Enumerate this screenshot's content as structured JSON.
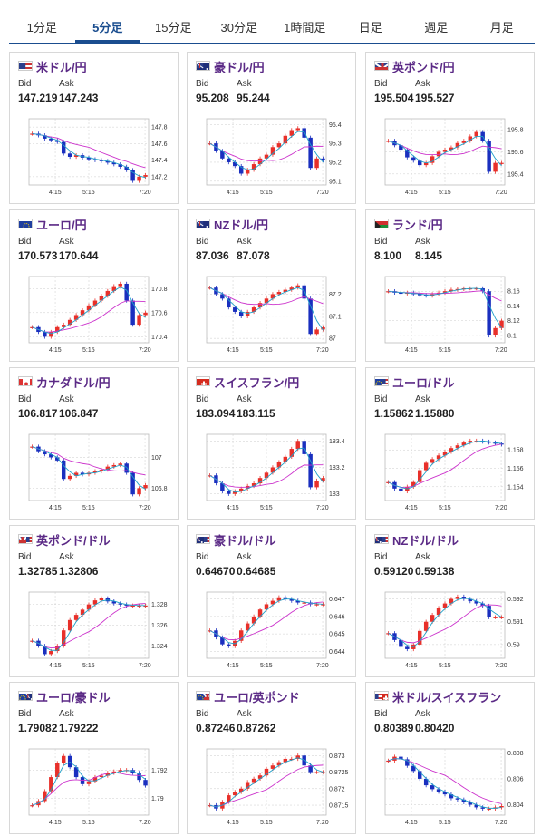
{
  "tabs": [
    {
      "label": "1分足",
      "active": false
    },
    {
      "label": "5分足",
      "active": true
    },
    {
      "label": "15分足",
      "active": false
    },
    {
      "label": "30分足",
      "active": false
    },
    {
      "label": "1時間足",
      "active": false
    },
    {
      "label": "日足",
      "active": false
    },
    {
      "label": "週足",
      "active": false
    },
    {
      "label": "月足",
      "active": false
    }
  ],
  "labels": {
    "bid": "Bid",
    "ask": "Ask"
  },
  "colors": {
    "up": "#e8302a",
    "down": "#1a2fbf",
    "ma_long": "#cc33cc",
    "ma_short": "#1ea0c8",
    "pair_name": "#5b2a86",
    "tab_active": "#1a4d8f"
  },
  "cards": [
    {
      "pair": "米ドル/円",
      "flag": "us",
      "bid": "147.219",
      "ask": "147.243"
    },
    {
      "pair": "豪ドル/円",
      "flag": "au",
      "bid": "95.208",
      "ask": "95.244"
    },
    {
      "pair": "英ポンド/円",
      "flag": "uk",
      "bid": "195.504",
      "ask": "195.527"
    },
    {
      "pair": "ユーロ/円",
      "flag": "eu",
      "bid": "170.573",
      "ask": "170.644"
    },
    {
      "pair": "NZドル/円",
      "flag": "nz",
      "bid": "87.036",
      "ask": "87.078"
    },
    {
      "pair": "ランド/円",
      "flag": "za",
      "bid": "8.100",
      "ask": "8.145"
    },
    {
      "pair": "カナダドル/円",
      "flag": "ca",
      "bid": "106.817",
      "ask": "106.847"
    },
    {
      "pair": "スイスフラン/円",
      "flag": "ch",
      "bid": "183.094",
      "ask": "183.115"
    },
    {
      "pair": "ユーロ/ドル",
      "flag": "eu-us",
      "bid": "1.15862",
      "ask": "1.15880"
    },
    {
      "pair": "英ポンド/ドル",
      "flag": "uk-us",
      "bid": "1.32785",
      "ask": "1.32806"
    },
    {
      "pair": "豪ドル/ドル",
      "flag": "au-us",
      "bid": "0.64670",
      "ask": "0.64685"
    },
    {
      "pair": "NZドル/ドル",
      "flag": "nz-us",
      "bid": "0.59120",
      "ask": "0.59138"
    },
    {
      "pair": "ユーロ/豪ドル",
      "flag": "eu-au",
      "bid": "1.79082",
      "ask": "1.79222"
    },
    {
      "pair": "ユーロ/英ポンド",
      "flag": "eu-uk",
      "bid": "0.87246",
      "ask": "0.87262"
    },
    {
      "pair": "米ドル/スイスフラン",
      "flag": "us-ch",
      "bid": "0.80389",
      "ask": "0.80420"
    }
  ],
  "chart_data": [
    {
      "type": "candlestick",
      "pair": "米ドル/円",
      "x_ticks": [
        "4:15",
        "5:15",
        "7:20"
      ],
      "y_ticks": [
        147.8,
        147.6,
        147.4,
        147.2
      ],
      "ylim": [
        147.1,
        147.9
      ],
      "path": [
        147.72,
        147.7,
        147.66,
        147.64,
        147.62,
        147.48,
        147.44,
        147.46,
        147.43,
        147.41,
        147.4,
        147.39,
        147.37,
        147.35,
        147.32,
        147.28,
        147.15,
        147.2,
        147.22
      ]
    },
    {
      "type": "candlestick",
      "pair": "豪ドル/円",
      "x_ticks": [
        "4:15",
        "5:15",
        "7:20"
      ],
      "y_ticks": [
        95.4,
        95.3,
        95.2,
        95.1
      ],
      "ylim": [
        95.08,
        95.43
      ],
      "path": [
        95.3,
        95.26,
        95.22,
        95.2,
        95.18,
        95.14,
        95.16,
        95.19,
        95.22,
        95.24,
        95.28,
        95.3,
        95.34,
        95.37,
        95.38,
        95.33,
        95.17,
        95.22,
        95.21
      ]
    },
    {
      "type": "candlestick",
      "pair": "英ポンド/円",
      "x_ticks": [
        "4:15",
        "5:15",
        "7:20"
      ],
      "y_ticks": [
        195.8,
        195.6,
        195.4
      ],
      "ylim": [
        195.3,
        195.9
      ],
      "path": [
        195.7,
        195.66,
        195.62,
        195.55,
        195.52,
        195.48,
        195.5,
        195.56,
        195.6,
        195.62,
        195.64,
        195.68,
        195.7,
        195.74,
        195.78,
        195.7,
        195.42,
        195.5,
        195.5
      ]
    },
    {
      "type": "candlestick",
      "pair": "ユーロ/円",
      "x_ticks": [
        "4:15",
        "5:15",
        "7:20"
      ],
      "y_ticks": [
        170.8,
        170.6,
        170.4
      ],
      "ylim": [
        170.35,
        170.9
      ],
      "path": [
        170.48,
        170.44,
        170.4,
        170.44,
        170.48,
        170.5,
        170.54,
        170.58,
        170.62,
        170.66,
        170.7,
        170.74,
        170.78,
        170.82,
        170.84,
        170.7,
        170.5,
        170.58,
        170.6
      ]
    },
    {
      "type": "candlestick",
      "pair": "NZドル/円",
      "x_ticks": [
        "4:15",
        "5:15",
        "7:20"
      ],
      "y_ticks": [
        87.2,
        87.1,
        87.0
      ],
      "ylim": [
        86.98,
        87.28
      ],
      "path": [
        87.23,
        87.2,
        87.18,
        87.14,
        87.12,
        87.1,
        87.12,
        87.14,
        87.16,
        87.18,
        87.2,
        87.21,
        87.22,
        87.23,
        87.24,
        87.18,
        87.02,
        87.04,
        87.05
      ]
    },
    {
      "type": "candlestick",
      "pair": "ランド/円",
      "x_ticks": [
        "4:15",
        "5:15",
        "7:20"
      ],
      "y_ticks": [
        8.16,
        8.14,
        8.12,
        8.1
      ],
      "ylim": [
        8.09,
        8.18
      ],
      "path": [
        8.16,
        8.158,
        8.157,
        8.158,
        8.156,
        8.155,
        8.154,
        8.156,
        8.158,
        8.16,
        8.162,
        8.163,
        8.164,
        8.164,
        8.164,
        8.16,
        8.1,
        8.11,
        8.12
      ]
    },
    {
      "type": "candlestick",
      "pair": "カナダドル/円",
      "x_ticks": [
        "4:15",
        "5:15",
        "7:20"
      ],
      "y_ticks": [
        107.0,
        106.8
      ],
      "ylim": [
        106.72,
        107.15
      ],
      "path": [
        107.07,
        107.04,
        107.02,
        107.0,
        106.98,
        106.86,
        106.88,
        106.9,
        106.89,
        106.9,
        106.91,
        106.92,
        106.94,
        106.95,
        106.96,
        106.9,
        106.76,
        106.8,
        106.82
      ]
    },
    {
      "type": "candlestick",
      "pair": "スイスフラン/円",
      "x_ticks": [
        "4:15",
        "5:15",
        "7:20"
      ],
      "y_ticks": [
        183.4,
        183.2,
        183.0
      ],
      "ylim": [
        182.95,
        183.45
      ],
      "path": [
        183.14,
        183.08,
        183.02,
        183.0,
        183.02,
        183.04,
        183.06,
        183.08,
        183.12,
        183.16,
        183.2,
        183.24,
        183.28,
        183.34,
        183.4,
        183.3,
        183.05,
        183.1,
        183.12
      ]
    },
    {
      "type": "candlestick",
      "pair": "ユーロ/ドル",
      "x_ticks": [
        "4:15",
        "5:15",
        "7:20"
      ],
      "y_ticks": [
        1.158,
        1.156,
        1.154
      ],
      "ylim": [
        1.1525,
        1.1597
      ],
      "path": [
        1.1545,
        1.1538,
        1.1535,
        1.154,
        1.1545,
        1.1558,
        1.1566,
        1.157,
        1.1574,
        1.1578,
        1.1582,
        1.1585,
        1.1588,
        1.159,
        1.159,
        1.1589,
        1.1588,
        1.1587,
        1.1586
      ]
    },
    {
      "type": "candlestick",
      "pair": "英ポンド/ドル",
      "x_ticks": [
        "4:15",
        "5:15",
        "7:20"
      ],
      "y_ticks": [
        1.328,
        1.326,
        1.324
      ],
      "ylim": [
        1.3228,
        1.3292
      ],
      "path": [
        1.3245,
        1.324,
        1.3232,
        1.3235,
        1.324,
        1.3255,
        1.3265,
        1.327,
        1.3275,
        1.328,
        1.3284,
        1.3286,
        1.3283,
        1.3281,
        1.328,
        1.3279,
        1.3279,
        1.3279,
        1.3279
      ]
    },
    {
      "type": "candlestick",
      "pair": "豪ドル/ドル",
      "x_ticks": [
        "4:15",
        "5:15",
        "7:20"
      ],
      "y_ticks": [
        0.647,
        0.646,
        0.645,
        0.644
      ],
      "ylim": [
        0.6436,
        0.6474
      ],
      "path": [
        0.6452,
        0.6448,
        0.6444,
        0.6443,
        0.6446,
        0.6452,
        0.6456,
        0.646,
        0.6464,
        0.6467,
        0.6469,
        0.6471,
        0.647,
        0.6469,
        0.6468,
        0.6468,
        0.6467,
        0.6467,
        0.6467
      ]
    },
    {
      "type": "candlestick",
      "pair": "NZドル/ドル",
      "x_ticks": [
        "4:15",
        "5:15",
        "7:20"
      ],
      "y_ticks": [
        0.592,
        0.591,
        0.59
      ],
      "ylim": [
        0.5894,
        0.5923
      ],
      "path": [
        0.5905,
        0.5902,
        0.5899,
        0.5898,
        0.59,
        0.5906,
        0.591,
        0.5913,
        0.5916,
        0.5918,
        0.592,
        0.5921,
        0.592,
        0.5919,
        0.5918,
        0.5917,
        0.5912,
        0.5912,
        0.5912
      ]
    },
    {
      "type": "candlestick",
      "pair": "ユーロ/豪ドル",
      "x_ticks": [
        "4:15",
        "5:15",
        "7:20"
      ],
      "y_ticks": [
        1.792,
        1.79
      ],
      "ylim": [
        1.7888,
        1.7935
      ],
      "path": [
        1.7895,
        1.7898,
        1.7905,
        1.7915,
        1.7925,
        1.793,
        1.7922,
        1.7915,
        1.791,
        1.7912,
        1.7915,
        1.7916,
        1.7918,
        1.7919,
        1.792,
        1.792,
        1.7918,
        1.7913,
        1.7909
      ]
    },
    {
      "type": "candlestick",
      "pair": "ユーロ/英ポンド",
      "x_ticks": [
        "4:15",
        "5:15",
        "7:20"
      ],
      "y_ticks": [
        0.873,
        0.8725,
        0.872,
        0.8715
      ],
      "ylim": [
        0.8712,
        0.8732
      ],
      "path": [
        0.8715,
        0.8714,
        0.8716,
        0.8718,
        0.8719,
        0.872,
        0.8722,
        0.8723,
        0.8724,
        0.8726,
        0.8727,
        0.8728,
        0.8729,
        0.8729,
        0.873,
        0.8727,
        0.8725,
        0.8725,
        0.8725
      ]
    },
    {
      "type": "candlestick",
      "pair": "米ドル/スイスフラン",
      "x_ticks": [
        "4:15",
        "5:15",
        "7:20"
      ],
      "y_ticks": [
        0.808,
        0.806,
        0.804
      ],
      "ylim": [
        0.8032,
        0.8083
      ],
      "path": [
        0.8074,
        0.8077,
        0.8075,
        0.807,
        0.8066,
        0.806,
        0.8055,
        0.8052,
        0.805,
        0.8048,
        0.8045,
        0.8044,
        0.8042,
        0.804,
        0.8038,
        0.8037,
        0.8037,
        0.8038,
        0.8039
      ]
    }
  ]
}
